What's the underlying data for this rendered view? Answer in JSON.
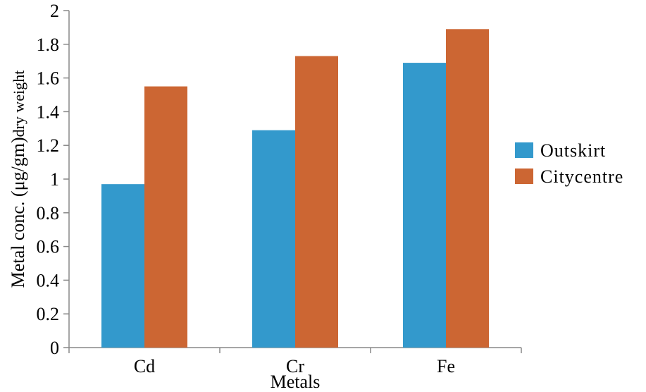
{
  "chart_data": {
    "type": "bar",
    "categories": [
      "Cd",
      "Cr",
      "Fe"
    ],
    "series": [
      {
        "name": "Outskirt",
        "values": [
          0.97,
          1.29,
          1.69
        ],
        "color": "#3399CC"
      },
      {
        "name": "Citycentre",
        "values": [
          1.55,
          1.73,
          1.89
        ],
        "color": "#CC6633"
      }
    ],
    "xlabel": "Metals",
    "ylabel_main": "Metal conc. (μg/gm)",
    "ylabel_suffix": "dry weight",
    "ylim": [
      0,
      2
    ],
    "yticks": [
      "0",
      "0.2",
      "0.4",
      "0.6",
      "0.8",
      "1",
      "1.2",
      "1.4",
      "1.6",
      "1.8",
      "2"
    ],
    "legend_position": "right",
    "grid": false
  }
}
